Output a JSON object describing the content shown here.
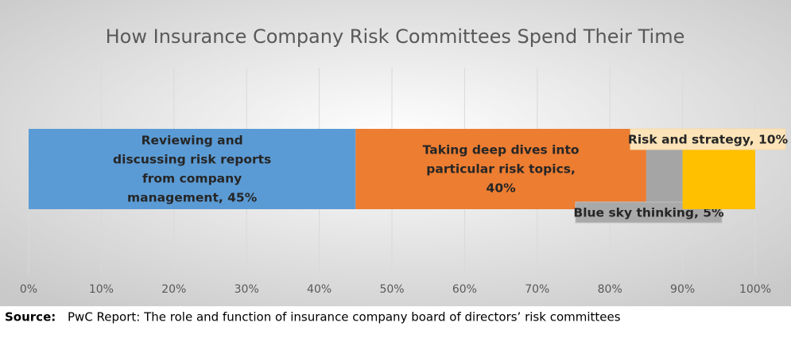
{
  "chart_data": {
    "type": "stacked-bar-horizontal",
    "title": "How Insurance Company Risk Committees Spend Their Time",
    "series": [
      {
        "color": "#5b9bd5",
        "values": [
          45
        ],
        "value_labels": [
          "Reviewing and discussing risk reports from company management, 45%"
        ]
      },
      {
        "color": "#ed7d31",
        "values": [
          40
        ],
        "value_labels": [
          "Taking deep dives into particular risk topics, 40%"
        ]
      },
      {
        "color": "#a5a5a5",
        "values": [
          5
        ],
        "value_labels": [
          "Blue sky thinking, 5%"
        ]
      },
      {
        "color": "#ffc000",
        "values": [
          10
        ],
        "value_labels": [
          "Risk and strategy, 10%"
        ]
      }
    ],
    "xlim": [
      0,
      100
    ],
    "xticks": [
      {
        "value": 0,
        "label": "0%"
      },
      {
        "value": 10,
        "label": "10%"
      },
      {
        "value": 20,
        "label": "20%"
      },
      {
        "value": 30,
        "label": "30%"
      },
      {
        "value": 40,
        "label": "40%"
      },
      {
        "value": 50,
        "label": "50%"
      },
      {
        "value": 60,
        "label": "60%"
      },
      {
        "value": 70,
        "label": "70%"
      },
      {
        "value": 80,
        "label": "80%"
      },
      {
        "value": 90,
        "label": "90%"
      },
      {
        "value": 100,
        "label": "100%"
      }
    ],
    "grid": true,
    "source_label": "Source:",
    "source": "PwC Report: The role and function of insurance company board of directors’ risk committees"
  }
}
